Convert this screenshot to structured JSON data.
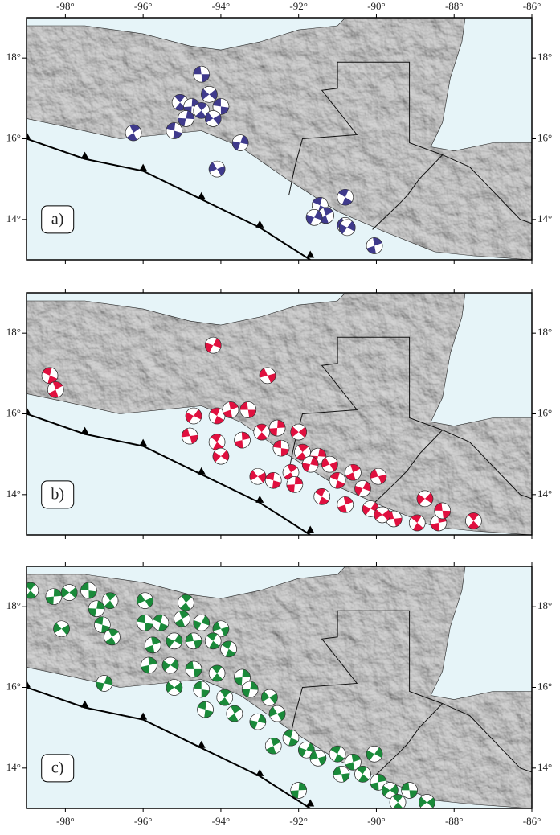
{
  "map": {
    "xlim": [
      -99,
      -86
    ],
    "ylim": [
      13,
      19
    ],
    "xticks": [
      {
        "value": -98,
        "label": "-98°"
      },
      {
        "value": -96,
        "label": "-96°"
      },
      {
        "value": -94,
        "label": "-94°"
      },
      {
        "value": -92,
        "label": "-92°"
      },
      {
        "value": -90,
        "label": "-90°"
      },
      {
        "value": -88,
        "label": "-88°"
      },
      {
        "value": -86,
        "label": "-86°"
      }
    ],
    "yticks": [
      {
        "value": 14,
        "label": "14°"
      },
      {
        "value": 16,
        "label": "16°"
      },
      {
        "value": 18,
        "label": "18°"
      }
    ]
  },
  "panels": [
    {
      "label": "a)",
      "color": "#3f3a8c",
      "lon": [
        -94.5,
        -95.05,
        -94.75,
        -94.3,
        -94.0,
        -94.5,
        -94.9,
        -94.2,
        -95.2,
        -96.25,
        -93.5,
        -94.1,
        -91.45,
        -91.3,
        -91.6,
        -90.8,
        -90.8,
        -90.05,
        -90.75
      ],
      "lat": [
        17.6,
        16.9,
        16.8,
        17.1,
        16.8,
        16.7,
        16.5,
        16.5,
        16.2,
        16.15,
        15.9,
        15.25,
        14.35,
        14.1,
        14.05,
        13.85,
        14.55,
        13.35,
        13.8
      ]
    },
    {
      "label": "b)",
      "color": "#e0103f",
      "lon": [
        -98.4,
        -98.25,
        -94.2,
        -92.8,
        -94.1,
        -93.75,
        -94.7,
        -94.8,
        -94.1,
        -93.45,
        -94.0,
        -93.3,
        -92.95,
        -92.55,
        -92.0,
        -92.45,
        -91.9,
        -91.5,
        -93.05,
        -92.65,
        -92.2,
        -91.7,
        -91.2,
        -91.0,
        -90.6,
        -90.35,
        -89.95,
        -91.4,
        -90.8,
        -90.15,
        -89.55,
        -88.95,
        -88.4,
        -88.75,
        -88.3,
        -87.5,
        -92.1,
        -89.85
      ],
      "lat": [
        16.95,
        16.6,
        17.7,
        16.95,
        15.95,
        16.1,
        15.95,
        15.45,
        15.3,
        15.35,
        14.95,
        16.1,
        15.55,
        15.65,
        15.55,
        15.15,
        15.05,
        14.95,
        14.45,
        14.35,
        14.55,
        14.75,
        14.75,
        14.35,
        14.55,
        14.15,
        14.45,
        13.95,
        13.75,
        13.65,
        13.4,
        13.3,
        13.3,
        13.9,
        13.6,
        13.35,
        14.25,
        13.5
      ]
    },
    {
      "label": "c)",
      "color": "#1a8a3a",
      "lon": [
        -98.9,
        -98.3,
        -97.9,
        -97.4,
        -96.85,
        -97.2,
        -98.1,
        -97.05,
        -96.8,
        -97.0,
        -95.95,
        -95.55,
        -95.0,
        -94.5,
        -94.0,
        -93.8,
        -95.75,
        -95.2,
        -94.7,
        -94.2,
        -95.85,
        -95.3,
        -94.7,
        -94.1,
        -93.45,
        -95.2,
        -94.5,
        -93.9,
        -93.25,
        -92.75,
        -94.4,
        -93.65,
        -93.05,
        -92.55,
        -92.2,
        -92.65,
        -91.8,
        -91.5,
        -91.0,
        -90.6,
        -90.05,
        -90.9,
        -90.35,
        -89.95,
        -89.65,
        -89.15,
        -89.45,
        -92.0,
        -88.7,
        -95.95,
        -94.9
      ],
      "lat": [
        18.4,
        18.25,
        18.35,
        18.4,
        18.15,
        17.95,
        17.45,
        17.55,
        17.25,
        16.1,
        18.15,
        17.6,
        17.7,
        17.6,
        17.45,
        16.95,
        17.05,
        17.15,
        17.15,
        17.15,
        16.55,
        16.55,
        16.45,
        16.35,
        16.25,
        16.0,
        15.95,
        15.75,
        15.95,
        15.75,
        15.45,
        15.35,
        15.15,
        15.35,
        14.75,
        14.55,
        14.45,
        14.25,
        14.35,
        14.15,
        14.35,
        13.85,
        13.85,
        13.65,
        13.45,
        13.45,
        13.15,
        13.45,
        13.15,
        17.6,
        18.1
      ]
    }
  ]
}
